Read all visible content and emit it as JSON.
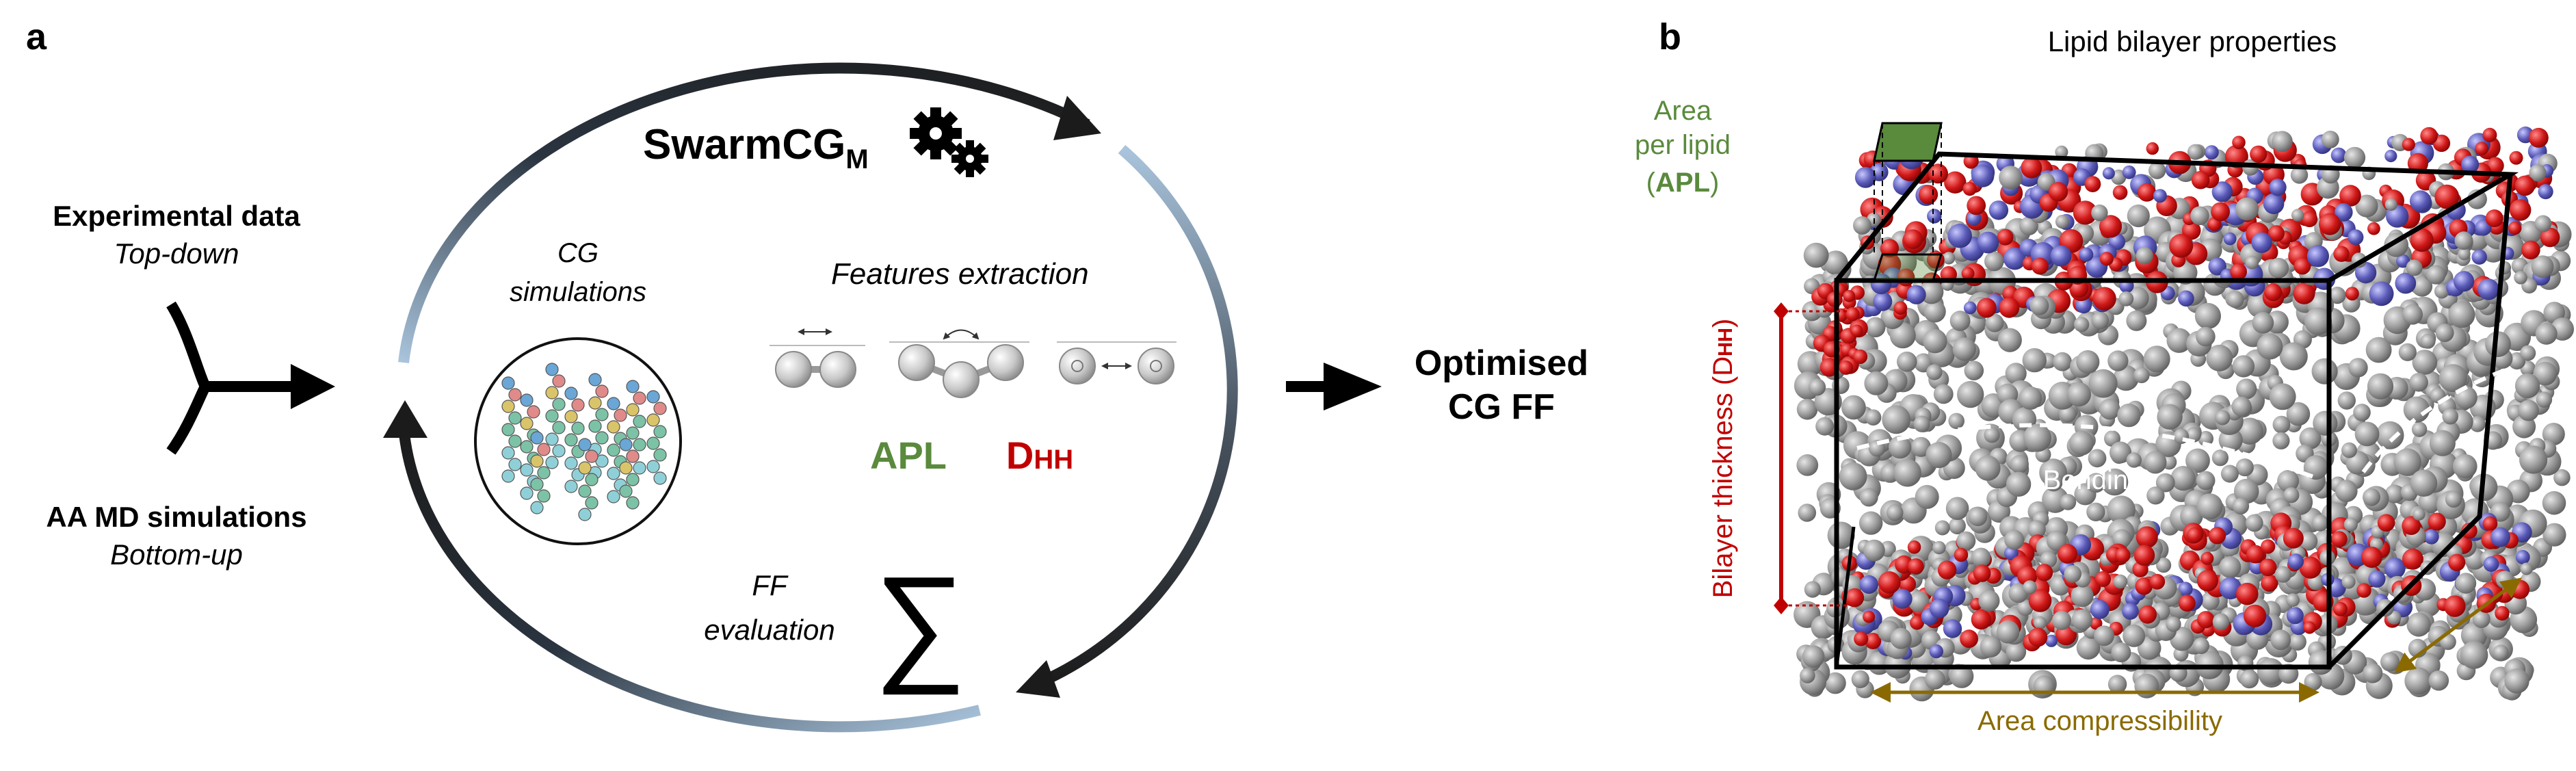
{
  "panel_a": {
    "label": "a",
    "experimental": {
      "title": "Experimental data",
      "subtitle": "Top-down"
    },
    "aamd": {
      "title": "AA MD simulations",
      "subtitle": "Bottom-up"
    },
    "swarm": {
      "name": "SwarmCG",
      "subscript": "M"
    },
    "cg_sim": {
      "line1": "CG",
      "line2": "simulations"
    },
    "features": "Features extraction",
    "apl": "APL",
    "dhh": {
      "main": "D",
      "sub": "HH"
    },
    "ff_eval": {
      "line1": "FF",
      "line2": "evaluation"
    },
    "sum_symbol": "∑",
    "output": {
      "line1": "Optimised",
      "line2": "CG FF"
    }
  },
  "panel_b": {
    "label": "b",
    "title": "Lipid bilayer properties",
    "apl_note": {
      "line1": "Area",
      "line2": "per lipid",
      "open": "(",
      "abbr": "APL",
      "close": ")"
    },
    "thickness": {
      "main": "Bilayer thickness (D",
      "sub": "HH",
      "close": ")"
    },
    "bending": "Bending",
    "compressibility": "Area compressibility"
  },
  "colors": {
    "apl_green": "#5a8a3c",
    "dhh_red": "#c00000",
    "brown": "#8a6a00",
    "dark": "#1b1b1b",
    "light_blue": "#a9c4dc"
  }
}
